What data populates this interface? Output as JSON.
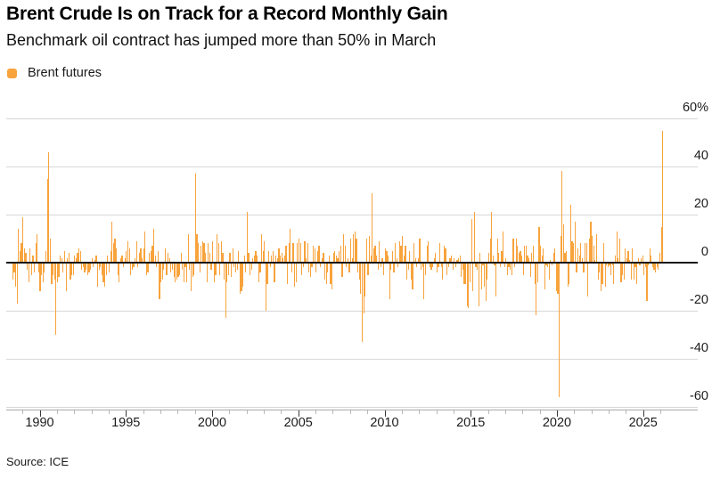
{
  "header": {
    "title": "Brent Crude Is on Track for a Record Monthly Gain",
    "subtitle": "Benchmark oil contract has jumped more than 50% in March"
  },
  "legend": {
    "label": "Brent futures",
    "color": "#f8a33c"
  },
  "source": {
    "text": "Source: ICE"
  },
  "chart_data": {
    "type": "bar",
    "title": "Brent Crude Is on Track for a Record Monthly Gain",
    "subtitle": "Benchmark oil contract has jumped more than 50% in March",
    "series_name": "Brent futures",
    "unit": "percent monthly change",
    "frequency": "monthly",
    "start": "1988-07",
    "end": "2026-03",
    "bar_color": "#f8a33c",
    "ylim": [
      -62,
      62
    ],
    "grid": true,
    "y_tick_values": [
      60,
      40,
      20,
      0,
      -20,
      -40,
      -60
    ],
    "y_tick_labels": [
      "60%",
      "40",
      "20",
      "0",
      "-20",
      "-40",
      "-60"
    ],
    "x_tick_years_major": [
      1990,
      1995,
      2000,
      2005,
      2010,
      2015,
      2020,
      2025
    ],
    "x_tick_year_range": [
      1989,
      2026
    ],
    "values": [
      -7,
      -4,
      -10,
      -17,
      14,
      5,
      8,
      19,
      6,
      4,
      -3,
      -8,
      6,
      -5,
      3,
      -4,
      8,
      12,
      -4,
      -12,
      -5,
      -8,
      -4,
      5,
      35,
      46,
      10,
      -9,
      -5,
      -7,
      -30,
      -8,
      -6,
      3,
      2,
      -4,
      5,
      -12,
      2,
      4,
      -7,
      -5,
      -5,
      3,
      2,
      4,
      6,
      5,
      -3,
      -2,
      -4,
      -3,
      -5,
      -4,
      -3,
      2,
      -2,
      1,
      3,
      -10,
      -3,
      -2,
      -5,
      -8,
      -10,
      -5,
      3,
      -4,
      5,
      17,
      8,
      10,
      6,
      -5,
      -8,
      2,
      3,
      -2,
      2,
      5,
      9,
      6,
      -5,
      -3,
      -2,
      2,
      9,
      -2,
      4,
      6,
      2,
      6,
      13,
      -5,
      -4,
      4,
      5,
      7,
      14,
      3,
      -2,
      5,
      -15,
      -8,
      -7,
      -3,
      6,
      -5,
      4,
      2,
      -4,
      -3,
      -6,
      -8,
      -7,
      -6,
      -5,
      4,
      -3,
      -8,
      -2,
      -8,
      12,
      -3,
      -12,
      -6,
      -5,
      37,
      12,
      8,
      -4,
      7,
      9,
      8,
      4,
      -8,
      8,
      4,
      -3,
      9,
      -8,
      -5,
      12,
      8,
      -5,
      9,
      4,
      -7,
      -23,
      -8,
      -5,
      4,
      -6,
      6,
      -2,
      -4,
      -3,
      5,
      -13,
      -12,
      -10,
      3,
      -4,
      21,
      4,
      -5,
      -3,
      2,
      3,
      5,
      3,
      -8,
      -4,
      12,
      5,
      9,
      -20,
      -9,
      5,
      -2,
      3,
      5,
      -8,
      3,
      2,
      6,
      3,
      4,
      2,
      3,
      7,
      -9,
      8,
      14,
      -4,
      8,
      -10,
      -8,
      8,
      10,
      8,
      -5,
      -2,
      9,
      2,
      8,
      -4,
      -6,
      -2,
      7,
      6,
      -4,
      5,
      7,
      -2,
      2,
      4,
      -7,
      -9,
      -4,
      3,
      -9,
      -11,
      4,
      5,
      3,
      2,
      5,
      7,
      -6,
      12,
      7,
      -2,
      2,
      -4,
      10,
      2,
      12,
      13,
      10,
      -4,
      -7,
      -13,
      -33,
      -21,
      -14,
      10,
      -5,
      11,
      3,
      29,
      6,
      7,
      3,
      -3,
      9,
      -2,
      2,
      -5,
      6,
      5,
      3,
      -15,
      -3,
      5,
      -4,
      8,
      2,
      -2,
      9,
      7,
      11,
      3,
      7,
      -7,
      -3,
      5,
      -7,
      -11,
      8,
      2,
      -2,
      2,
      10,
      -3,
      -2,
      -15,
      -5,
      7,
      9,
      -2,
      -3,
      -2,
      2,
      4,
      -4,
      -2,
      8,
      -2,
      -7,
      7,
      6,
      -5,
      -2,
      2,
      3,
      -3,
      2,
      -2,
      1,
      2,
      3,
      -6,
      -3,
      -9,
      -9,
      -18,
      -19,
      -8,
      18,
      -12,
      21,
      -2,
      -3,
      -18,
      4,
      -11,
      -1,
      -10,
      -16,
      -7,
      4,
      10,
      21,
      3,
      -1,
      -14,
      10,
      4,
      -2,
      5,
      13,
      -2,
      2,
      -5,
      -2,
      -3,
      -5,
      10,
      -2,
      10,
      7,
      4,
      5,
      3,
      -5,
      7,
      7,
      3,
      2,
      -6,
      4,
      7,
      -9,
      -22,
      -8,
      15,
      7,
      3,
      6,
      -11,
      -1,
      -2,
      -7,
      1,
      -1,
      4,
      6,
      -12,
      -13,
      -56,
      11,
      38,
      16,
      4,
      5,
      -10,
      -9,
      24,
      9,
      8,
      17,
      -4,
      6,
      3,
      8,
      2,
      -4,
      8,
      8,
      -14,
      10,
      17,
      11,
      7,
      1,
      12,
      -7,
      -4,
      -12,
      -9,
      8,
      -10,
      -1,
      -2,
      -1,
      -5,
      -1,
      -9,
      3,
      13,
      2,
      10,
      -8,
      -5,
      -7,
      6,
      2,
      5,
      1,
      -7,
      6,
      -7,
      -2,
      -9,
      2,
      -1,
      2,
      3,
      -5,
      -2,
      -16,
      -1,
      6,
      3,
      -2,
      -3,
      -4,
      -2,
      -3,
      4,
      15,
      55
    ]
  }
}
